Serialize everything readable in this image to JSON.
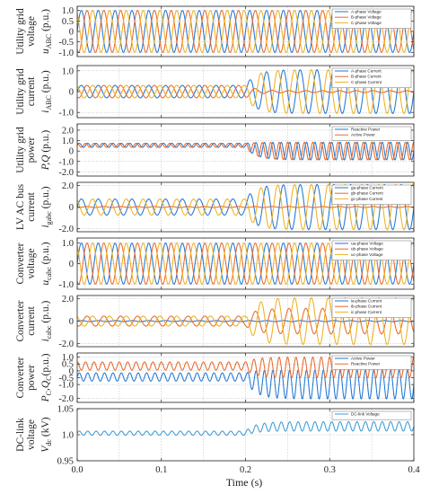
{
  "chart_data": [
    {
      "type": "line",
      "ylabel_lines": [
        "Utility grid",
        "voltage"
      ],
      "ylabel_symbol": "u",
      "ylabel_sub": "ABC",
      "ylabel_unit": " (p.u.)",
      "xlim": [
        0,
        0.4
      ],
      "ylim": [
        -1.2,
        1.2
      ],
      "yticks": [
        {
          "v": 1.0,
          "label": "1.0"
        },
        {
          "v": 0.5,
          "label": "0.5"
        },
        {
          "v": 0.0,
          "label": "0"
        },
        {
          "v": -0.5,
          "label": "-0.5"
        },
        {
          "v": -1.0,
          "label": "-1.0"
        }
      ],
      "legend_position": "top-right",
      "grid": true,
      "series": [
        {
          "name": "A-phase Voltage",
          "color": "#1f77d4",
          "freq": 50,
          "phase": 0,
          "before": {
            "amp": 1.0,
            "offset": 0
          },
          "after": {
            "amp": 1.0,
            "offset": 0
          }
        },
        {
          "name": "B-phase Voltage",
          "color": "#e8682a",
          "freq": 50,
          "phase": -120,
          "before": {
            "amp": 1.0,
            "offset": 0
          },
          "after": {
            "amp": 1.0,
            "offset": 0
          }
        },
        {
          "name": "C-phase Voltage",
          "color": "#edb120",
          "freq": 50,
          "phase": 120,
          "before": {
            "amp": 1.0,
            "offset": 0
          },
          "after": {
            "amp": 1.0,
            "offset": 0
          }
        }
      ]
    },
    {
      "type": "line",
      "ylabel_lines": [
        "Utility grid",
        "current"
      ],
      "ylabel_symbol": "i",
      "ylabel_sub": "ABC",
      "ylabel_unit": " (p.u.)",
      "xlim": [
        0,
        0.4
      ],
      "ylim": [
        -1.25,
        1.25
      ],
      "yticks": [
        {
          "v": 1.0,
          "label": "1.0"
        },
        {
          "v": 0.0,
          "label": "0"
        },
        {
          "v": -1.0,
          "label": "-1.0"
        }
      ],
      "legend_position": "top-right",
      "grid": true,
      "series": [
        {
          "name": "A-phase Current",
          "color": "#1f77d4",
          "freq": 50,
          "phase": 0,
          "before": {
            "amp": 0.3,
            "offset": 0
          },
          "after": {
            "amp": 1.05,
            "offset": 0
          }
        },
        {
          "name": "B-phase Current",
          "color": "#e8682a",
          "freq": 50,
          "phase": -120,
          "before": {
            "amp": 0.3,
            "offset": 0
          },
          "after": {
            "amp": 0.05,
            "offset": 0
          }
        },
        {
          "name": "C-phase Current",
          "color": "#edb120",
          "freq": 50,
          "phase": 120,
          "before": {
            "amp": 0.3,
            "offset": 0
          },
          "after": {
            "amp": 1.05,
            "offset": 0
          }
        }
      ]
    },
    {
      "type": "line",
      "ylabel_lines": [
        "Utility grid",
        "power"
      ],
      "ylabel_symbol": "P,Q",
      "ylabel_sub": "",
      "ylabel_unit": " (p.u.)",
      "xlim": [
        0,
        0.4
      ],
      "ylim": [
        -2.4,
        2.6
      ],
      "yticks": [
        {
          "v": 2.0,
          "label": "2.0"
        },
        {
          "v": 1.0,
          "label": "1.0"
        },
        {
          "v": 0.0,
          "label": "0"
        },
        {
          "v": -1.0,
          "label": "-1.0"
        },
        {
          "v": -2.0,
          "label": "-2.0"
        }
      ],
      "legend_position": "top-right",
      "grid": true,
      "series": [
        {
          "name": "Reactive Power",
          "color": "#1f77d4",
          "freq": 100,
          "phase": 0,
          "before": {
            "amp": 0.2,
            "offset": 0.55
          },
          "after": {
            "amp": 0.85,
            "offset": 0
          }
        },
        {
          "name": "Active Power",
          "color": "#e8682a",
          "freq": 100,
          "phase": 90,
          "before": {
            "amp": 0.2,
            "offset": 0.55
          },
          "after": {
            "amp": 0.85,
            "offset": 0
          }
        }
      ]
    },
    {
      "type": "line",
      "ylabel_lines": [
        "LV AC bus",
        "current"
      ],
      "ylabel_symbol": "i",
      "ylabel_sub": "gabc",
      "ylabel_unit": " (p.u.)",
      "xlim": [
        0,
        0.4
      ],
      "ylim": [
        -2.3,
        2.3
      ],
      "yticks": [
        {
          "v": 2.0,
          "label": "2.0"
        },
        {
          "v": 0.0,
          "label": "0"
        },
        {
          "v": -2.0,
          "label": "-2.0"
        }
      ],
      "legend_position": "top-right",
      "grid": true,
      "series": [
        {
          "name": "ga-phase Current",
          "color": "#1f77d4",
          "freq": 50,
          "phase": 0,
          "before": {
            "amp": 0.75,
            "offset": 0
          },
          "after": {
            "amp": 2.1,
            "offset": 0
          }
        },
        {
          "name": "gb-phase Current",
          "color": "#e8682a",
          "freq": 50,
          "phase": -120,
          "before": {
            "amp": 0.05,
            "offset": 0
          },
          "after": {
            "amp": 0.05,
            "offset": 0
          }
        },
        {
          "name": "gc-phase Current",
          "color": "#edb120",
          "freq": 50,
          "phase": 120,
          "before": {
            "amp": 0.75,
            "offset": 0
          },
          "after": {
            "amp": 2.1,
            "offset": 0
          }
        }
      ]
    },
    {
      "type": "line",
      "ylabel_lines": [
        "Converter",
        "voltage"
      ],
      "ylabel_symbol": "u",
      "ylabel_sub": "cabc",
      "ylabel_unit": " (p.u.)",
      "xlim": [
        0,
        0.4
      ],
      "ylim": [
        -1.25,
        1.25
      ],
      "yticks": [
        {
          "v": 1.0,
          "label": "1.0"
        },
        {
          "v": 0.0,
          "label": "0"
        },
        {
          "v": -1.0,
          "label": "-1.0"
        }
      ],
      "legend_position": "top-right",
      "grid": true,
      "series": [
        {
          "name": "ua-phase Voltage",
          "color": "#1f77d4",
          "freq": 50,
          "phase": 0,
          "before": {
            "amp": 1.0,
            "offset": 0
          },
          "after": {
            "amp": 1.0,
            "offset": 0
          }
        },
        {
          "name": "ub-phase Voltage",
          "color": "#e8682a",
          "freq": 50,
          "phase": -120,
          "before": {
            "amp": 1.0,
            "offset": 0
          },
          "after": {
            "amp": 1.0,
            "offset": 0
          }
        },
        {
          "name": "uc-phase Voltage",
          "color": "#edb120",
          "freq": 50,
          "phase": 120,
          "before": {
            "amp": 1.0,
            "offset": 0
          },
          "after": {
            "amp": 1.0,
            "offset": 0
          }
        }
      ]
    },
    {
      "type": "line",
      "ylabel_lines": [
        "Converter",
        "current"
      ],
      "ylabel_symbol": "i",
      "ylabel_sub": "cabc",
      "ylabel_unit": " (p.u.)",
      "xlim": [
        0,
        0.4
      ],
      "ylim": [
        -2.3,
        2.3
      ],
      "yticks": [
        {
          "v": 2.0,
          "label": "2.0"
        },
        {
          "v": 0.0,
          "label": "0"
        },
        {
          "v": -2.0,
          "label": "-2.0"
        }
      ],
      "legend_position": "top-right",
      "grid": true,
      "series": [
        {
          "name": "ia-phase Current",
          "color": "#1f77d4",
          "freq": 50,
          "phase": 0,
          "before": {
            "amp": 0.05,
            "offset": 0
          },
          "after": {
            "amp": 0.05,
            "offset": 0
          }
        },
        {
          "name": "ib-phase Current",
          "color": "#e8682a",
          "freq": 50,
          "phase": -120,
          "before": {
            "amp": 0.45,
            "offset": 0
          },
          "after": {
            "amp": 1.15,
            "offset": 0
          }
        },
        {
          "name": "ic-phase Current",
          "color": "#edb120",
          "freq": 50,
          "phase": 120,
          "before": {
            "amp": 0.45,
            "offset": 0
          },
          "after": {
            "amp": 2.1,
            "offset": 0
          }
        }
      ]
    },
    {
      "type": "line",
      "ylabel_lines": [
        "Converter",
        "power"
      ],
      "ylabel_symbol": "P",
      "ylabel_sub": "C",
      "ylabel_unit": ",Q",
      "ylabel_unit2_sub": "C",
      "ylabel_unit2": "(p.u.)",
      "xlim": [
        0,
        0.4
      ],
      "ylim": [
        -2.3,
        1.3
      ],
      "yticks": [
        {
          "v": 1.0,
          "label": "1.0"
        },
        {
          "v": 0.0,
          "label": "0"
        },
        {
          "v": -1.0,
          "label": "-1.0"
        },
        {
          "v": -2.0,
          "label": "-2.0"
        }
      ],
      "yticks_minor": [
        {
          "v": 0.5,
          "label": "0.5"
        },
        {
          "v": -0.5,
          "label": "-0.5"
        }
      ],
      "legend_position": "top-right",
      "grid": true,
      "series": [
        {
          "name": "Active Power",
          "color": "#1f77d4",
          "freq": 100,
          "phase": 0,
          "before": {
            "amp": 0.3,
            "offset": -0.45
          },
          "after": {
            "amp": 1.05,
            "offset": -1.0
          }
        },
        {
          "name": "Reactive Power",
          "color": "#e8682a",
          "freq": 100,
          "phase": 90,
          "before": {
            "amp": 0.3,
            "offset": 0.35
          },
          "after": {
            "amp": 0.75,
            "offset": 0.25
          }
        }
      ]
    },
    {
      "type": "line",
      "ylabel_lines": [
        "DC-link",
        "voltage"
      ],
      "ylabel_symbol": "V",
      "ylabel_sub": "dc",
      "ylabel_unit": " (kV)",
      "xlim": [
        0,
        0.4
      ],
      "ylim": [
        0.95,
        1.05
      ],
      "yticks": [
        {
          "v": 1.05,
          "label": "1.05"
        },
        {
          "v": 1.0,
          "label": "1.0"
        },
        {
          "v": 0.95,
          "label": "0.95"
        }
      ],
      "legend_position": "top-right",
      "grid": true,
      "series": [
        {
          "name": "DC-link Voltage",
          "color": "#3a9bd5",
          "freq": 100,
          "phase": 0,
          "before": {
            "amp": 0.004,
            "offset": 1.003
          },
          "after": {
            "amp": 0.009,
            "offset": 1.016
          }
        }
      ]
    }
  ],
  "axis": {
    "x_label": "Time (s)",
    "x_ticks": [
      {
        "v": 0.0,
        "label": "0.0"
      },
      {
        "v": 0.1,
        "label": "0.1"
      },
      {
        "v": 0.2,
        "label": "0.2"
      },
      {
        "v": 0.3,
        "label": "0.3"
      },
      {
        "v": 0.4,
        "label": "0.4"
      }
    ],
    "x_gridlines": [
      0.05,
      0.1,
      0.15,
      0.2,
      0.25,
      0.3,
      0.35
    ],
    "event_time": 0.2,
    "transient_decay": 0.012
  },
  "style": {
    "axis_color": "#222222",
    "grid_color": "#b8b8b8",
    "background": "#ffffff"
  }
}
